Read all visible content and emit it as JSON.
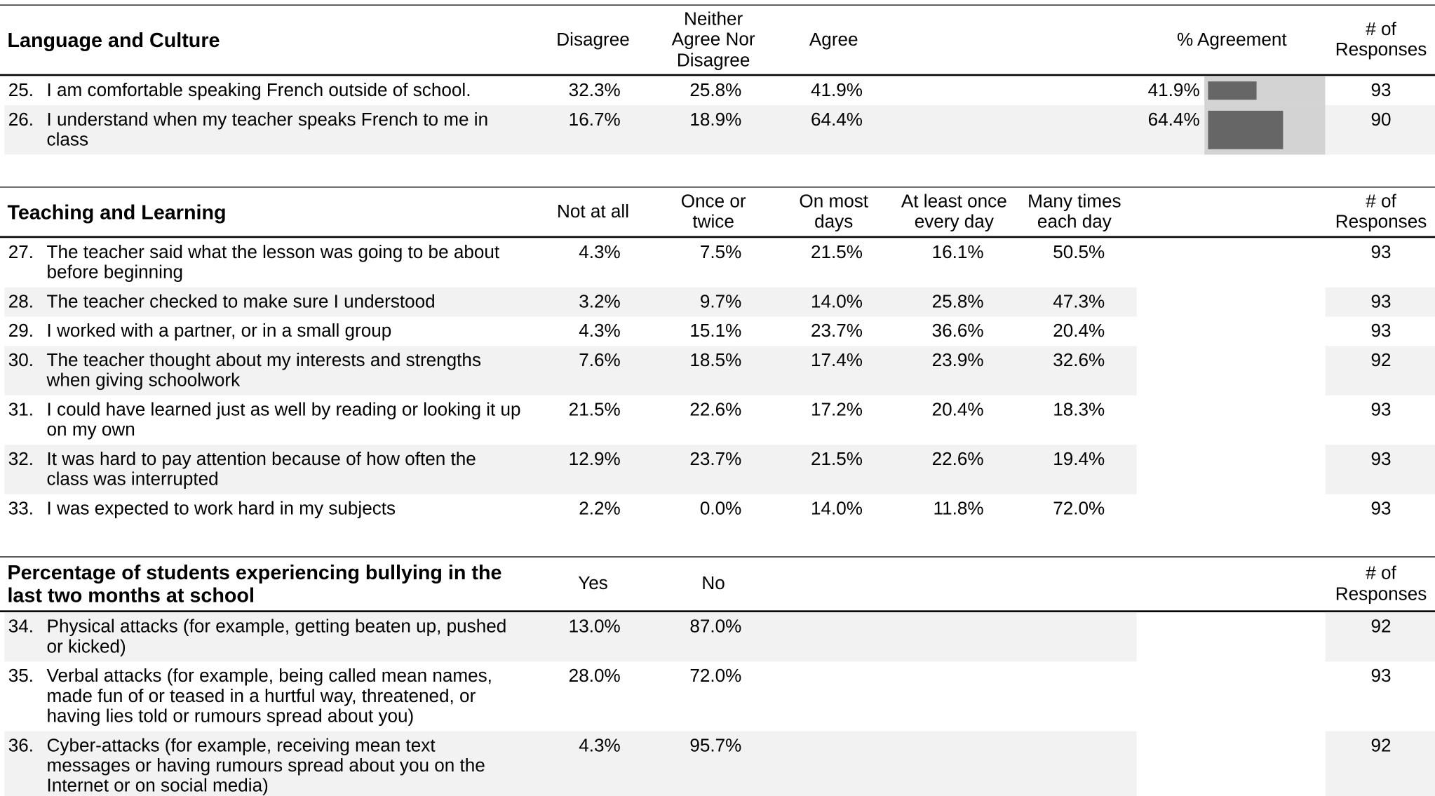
{
  "sections": [
    {
      "title": "Language and Culture",
      "columns": [
        "Disagree",
        "Neither Agree Nor Disagree",
        "Agree"
      ],
      "agreement_header": "% Agreement",
      "responses_header": "# of Responses",
      "rows": [
        {
          "number": "25.",
          "text": "I am comfortable speaking French outside of school.",
          "values": [
            "32.3%",
            "25.8%",
            "41.9%"
          ],
          "agreement": 41.9,
          "agreement_label": "41.9%",
          "responses": "93"
        },
        {
          "number": "26.",
          "text": "I understand when my teacher speaks French to me in class",
          "values": [
            "16.7%",
            "18.9%",
            "64.4%"
          ],
          "agreement": 64.4,
          "agreement_label": "64.4%",
          "responses": "90"
        }
      ]
    },
    {
      "title": "Teaching and Learning",
      "columns": [
        "Not at all",
        "Once or twice",
        "On most days",
        "At least once every day",
        "Many times each day"
      ],
      "responses_header": "# of Responses",
      "rows": [
        {
          "number": "27.",
          "text": "The teacher said what the lesson was going to be about before beginning",
          "values": [
            "4.3%",
            "7.5%",
            "21.5%",
            "16.1%",
            "50.5%"
          ],
          "responses": "93"
        },
        {
          "number": "28.",
          "text": "The teacher checked to make sure I understood",
          "values": [
            "3.2%",
            "9.7%",
            "14.0%",
            "25.8%",
            "47.3%"
          ],
          "responses": "93"
        },
        {
          "number": "29.",
          "text": "I worked with a partner, or in a small group",
          "values": [
            "4.3%",
            "15.1%",
            "23.7%",
            "36.6%",
            "20.4%"
          ],
          "responses": "93"
        },
        {
          "number": "30.",
          "text": "The teacher thought about my interests and strengths when giving schoolwork",
          "values": [
            "7.6%",
            "18.5%",
            "17.4%",
            "23.9%",
            "32.6%"
          ],
          "responses": "92"
        },
        {
          "number": "31.",
          "text": "I could have learned just as well by reading or looking it up on my own",
          "values": [
            "21.5%",
            "22.6%",
            "17.2%",
            "20.4%",
            "18.3%"
          ],
          "responses": "93"
        },
        {
          "number": "32.",
          "text": "It was hard to pay attention because of how often the class was interrupted",
          "values": [
            "12.9%",
            "23.7%",
            "21.5%",
            "22.6%",
            "19.4%"
          ],
          "responses": "93"
        },
        {
          "number": "33.",
          "text": "I was expected to work hard in my subjects",
          "values": [
            "2.2%",
            "0.0%",
            "14.0%",
            "11.8%",
            "72.0%"
          ],
          "responses": "93"
        }
      ]
    },
    {
      "title": "Percentage of students experiencing bullying in the last two months at school",
      "columns": [
        "Yes",
        "No"
      ],
      "responses_header": "# of Responses",
      "rows": [
        {
          "number": "34.",
          "text": "Physical attacks (for example, getting beaten up, pushed or kicked)",
          "values": [
            "13.0%",
            "87.0%"
          ],
          "responses": "92"
        },
        {
          "number": "35.",
          "text": "Verbal attacks (for example, being called mean names, made fun of or teased in a hurtful way, threatened, or having lies told or rumours spread about you)",
          "values": [
            "28.0%",
            "72.0%"
          ],
          "responses": "93"
        },
        {
          "number": "36.",
          "text": "Cyber-attacks (for example, receiving mean text messages or having rumours spread about you on the Internet or on social media)",
          "values": [
            "4.3%",
            "95.7%"
          ],
          "responses": "92"
        }
      ]
    }
  ]
}
